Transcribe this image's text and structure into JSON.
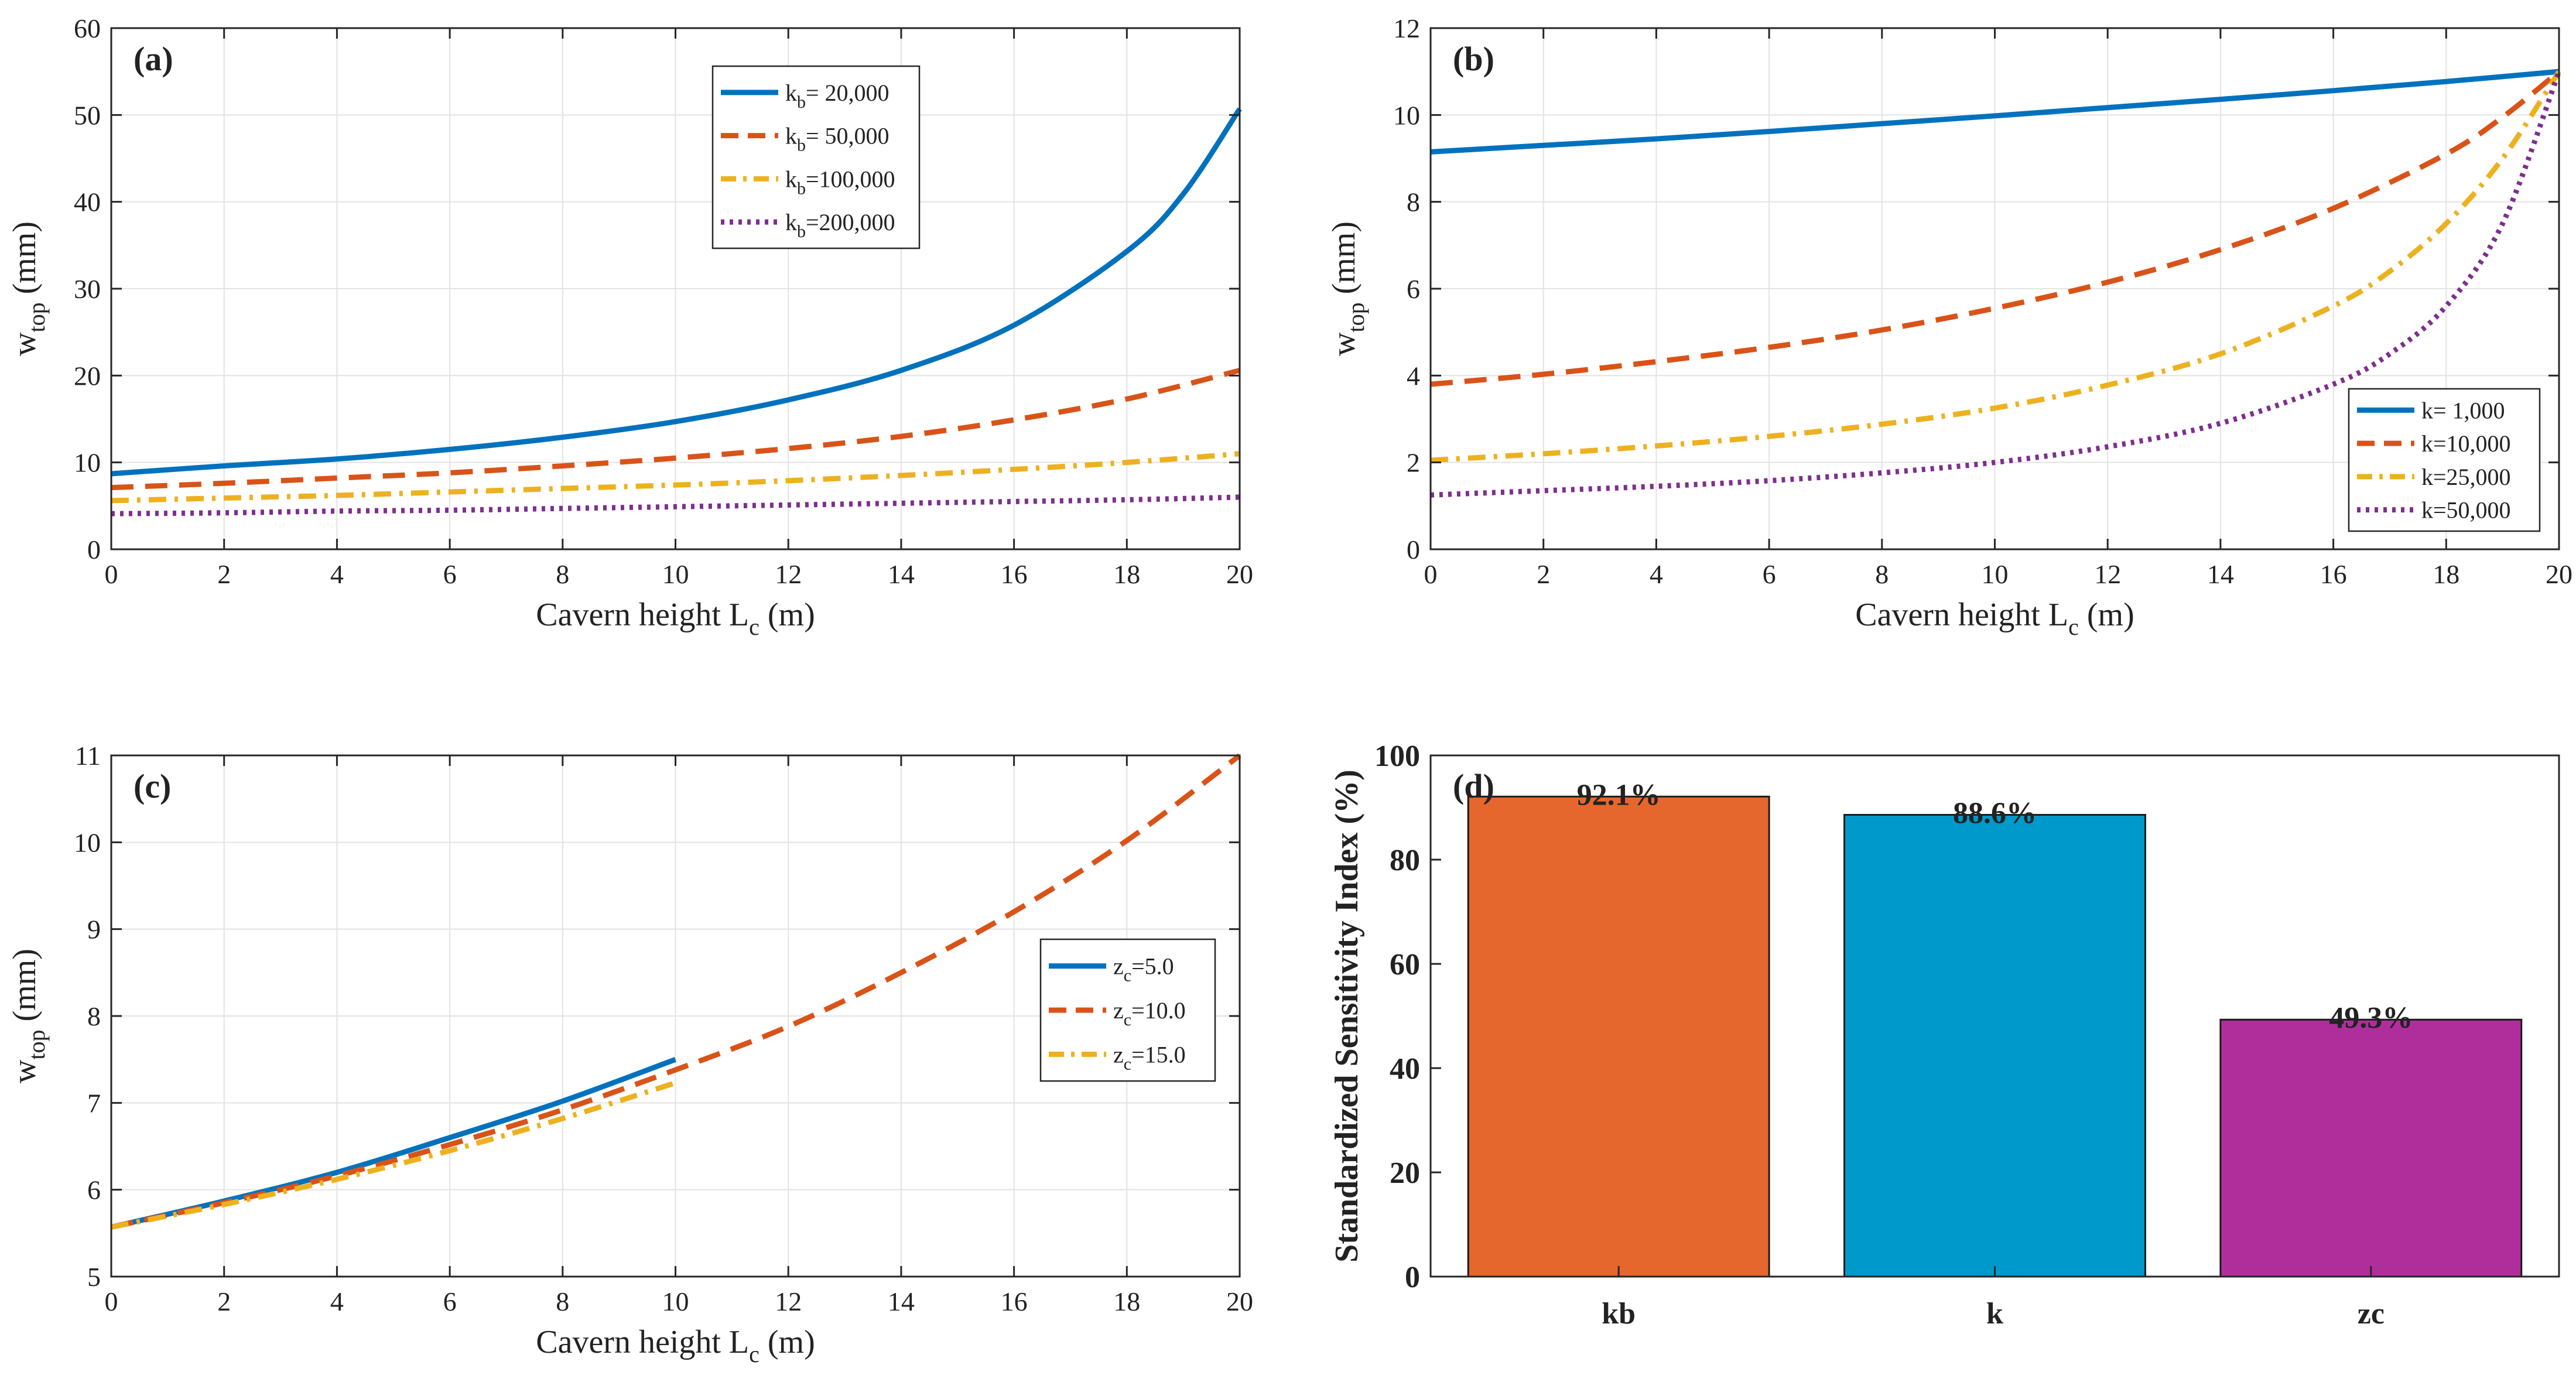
{
  "chart_data": [
    {
      "panel": "(a)",
      "type": "line",
      "xlabel_main": "Cavern height L",
      "xlabel_sub": "c",
      "xlabel_unit": " (m)",
      "ylabel_main": "w",
      "ylabel_sub": "top",
      "ylabel_unit": " (mm)",
      "xlim": [
        0,
        20
      ],
      "ylim": [
        0,
        60
      ],
      "xticks": [
        "0",
        "2",
        "4",
        "6",
        "8",
        "10",
        "12",
        "14",
        "16",
        "18",
        "20"
      ],
      "yticks": [
        "0",
        "10",
        "20",
        "30",
        "40",
        "50",
        "60"
      ],
      "legend_position": "top-right",
      "series": [
        {
          "name_main": "k",
          "name_sub": "b",
          "name_value": "= 20,000",
          "color": "#0072BD",
          "style": "solid",
          "x": [
            0,
            2,
            4,
            6,
            8,
            10,
            12,
            14,
            16,
            18,
            19,
            20
          ],
          "y": [
            8.7,
            9.6,
            10.4,
            11.5,
            12.9,
            14.7,
            17.2,
            20.6,
            25.8,
            34.3,
            40.9,
            50.7
          ]
        },
        {
          "name_main": "k",
          "name_sub": "b",
          "name_value": "= 50,000",
          "color": "#D95319",
          "style": "dash",
          "x": [
            0,
            2,
            4,
            6,
            8,
            10,
            12,
            14,
            16,
            18,
            20
          ],
          "y": [
            7.1,
            7.6,
            8.2,
            8.8,
            9.6,
            10.5,
            11.6,
            13.0,
            14.9,
            17.3,
            20.6
          ]
        },
        {
          "name_main": "k",
          "name_sub": "b",
          "name_value": "=100,000",
          "color": "#EDB120",
          "style": "dashdot",
          "x": [
            0,
            2,
            4,
            6,
            8,
            10,
            12,
            14,
            16,
            18,
            20
          ],
          "y": [
            5.6,
            5.9,
            6.2,
            6.6,
            7.0,
            7.4,
            7.9,
            8.5,
            9.2,
            10.0,
            11.0
          ]
        },
        {
          "name_main": "k",
          "name_sub": "b",
          "name_value": "=200,000",
          "color": "#7E2F8E",
          "style": "dot",
          "x": [
            0,
            2,
            4,
            6,
            8,
            10,
            12,
            14,
            16,
            18,
            20
          ],
          "y": [
            4.1,
            4.2,
            4.4,
            4.5,
            4.7,
            4.9,
            5.1,
            5.3,
            5.5,
            5.7,
            6.0
          ]
        }
      ]
    },
    {
      "panel": "(b)",
      "type": "line",
      "xlabel_main": "Cavern height L",
      "xlabel_sub": "c",
      "xlabel_unit": " (m)",
      "ylabel_main": "w",
      "ylabel_sub": "top",
      "ylabel_unit": " (mm)",
      "xlim": [
        0,
        20
      ],
      "ylim": [
        0,
        12
      ],
      "xticks": [
        "0",
        "2",
        "4",
        "6",
        "8",
        "10",
        "12",
        "14",
        "16",
        "18",
        "20"
      ],
      "yticks": [
        "0",
        "2",
        "4",
        "6",
        "8",
        "10",
        "12"
      ],
      "legend_position": "bottom-right",
      "series": [
        {
          "name_main": "k=  1,000",
          "name_sub": "",
          "name_value": "",
          "color": "#0072BD",
          "style": "solid",
          "x": [
            0,
            2,
            4,
            6,
            8,
            10,
            12,
            14,
            16,
            18,
            20
          ],
          "y": [
            9.15,
            9.3,
            9.45,
            9.62,
            9.8,
            9.98,
            10.17,
            10.36,
            10.56,
            10.77,
            11.0
          ]
        },
        {
          "name_main": "k=10,000",
          "name_sub": "",
          "name_value": "",
          "color": "#D95319",
          "style": "dash",
          "x": [
            0,
            2,
            4,
            6,
            8,
            10,
            12,
            14,
            16,
            18,
            19,
            20
          ],
          "y": [
            3.8,
            4.03,
            4.32,
            4.65,
            5.05,
            5.55,
            6.15,
            6.9,
            7.85,
            9.1,
            9.95,
            11.0
          ]
        },
        {
          "name_main": "k=25,000",
          "name_sub": "",
          "name_value": "",
          "color": "#EDB120",
          "style": "dashdot",
          "x": [
            0,
            2,
            4,
            6,
            8,
            10,
            12,
            14,
            16,
            17,
            18,
            19,
            20
          ],
          "y": [
            2.05,
            2.2,
            2.38,
            2.6,
            2.88,
            3.25,
            3.78,
            4.5,
            5.6,
            6.4,
            7.5,
            9.0,
            11.0
          ]
        },
        {
          "name_main": "k=50,000",
          "name_sub": "",
          "name_value": "",
          "color": "#7E2F8E",
          "style": "dot",
          "x": [
            0,
            2,
            4,
            6,
            8,
            10,
            12,
            14,
            16,
            17,
            18,
            19,
            20
          ],
          "y": [
            1.25,
            1.35,
            1.45,
            1.58,
            1.76,
            2.0,
            2.36,
            2.9,
            3.8,
            4.5,
            5.6,
            7.5,
            11.0
          ]
        }
      ]
    },
    {
      "panel": "(c)",
      "type": "line",
      "xlabel_main": "Cavern height L",
      "xlabel_sub": "c",
      "xlabel_unit": " (m)",
      "ylabel_main": "w",
      "ylabel_sub": "top",
      "ylabel_unit": " (mm)",
      "xlim": [
        0,
        20
      ],
      "ylim": [
        5,
        11
      ],
      "xticks": [
        "0",
        "2",
        "4",
        "6",
        "8",
        "10",
        "12",
        "14",
        "16",
        "18",
        "20"
      ],
      "yticks": [
        "5",
        "6",
        "7",
        "8",
        "9",
        "10",
        "11"
      ],
      "legend_position": "right",
      "series": [
        {
          "name_main": "z",
          "name_sub": "c",
          "name_value": "=5.0",
          "color": "#0072BD",
          "style": "solid",
          "x": [
            0,
            2,
            4,
            6,
            8,
            10
          ],
          "y": [
            5.57,
            5.87,
            6.2,
            6.6,
            7.02,
            7.5
          ]
        },
        {
          "name_main": "z",
          "name_sub": "c",
          "name_value": "=10.0",
          "color": "#D95319",
          "style": "dash",
          "x": [
            0,
            2,
            4,
            6,
            8,
            10,
            12,
            14,
            16,
            18,
            20
          ],
          "y": [
            5.57,
            5.85,
            6.16,
            6.52,
            6.92,
            7.38,
            7.88,
            8.5,
            9.2,
            10.02,
            11.0
          ]
        },
        {
          "name_main": "z",
          "name_sub": "c",
          "name_value": "=15.0",
          "color": "#EDB120",
          "style": "dashdot",
          "x": [
            0,
            2,
            4,
            6,
            8,
            10
          ],
          "y": [
            5.57,
            5.83,
            6.12,
            6.45,
            6.82,
            7.23
          ]
        }
      ]
    },
    {
      "panel": "(d)",
      "type": "bar",
      "ylabel": "Standardized Sensitivity Index (%)",
      "ylim": [
        0,
        100
      ],
      "yticks": [
        "0",
        "20",
        "40",
        "60",
        "80",
        "100"
      ],
      "categories": [
        "kb",
        "k",
        "zc"
      ],
      "values": [
        92.1,
        88.6,
        49.3
      ],
      "labels": [
        "92.1%",
        "88.6%",
        "49.3%"
      ],
      "colors": [
        "#E5672D",
        "#0099CC",
        "#B02E9C"
      ]
    }
  ]
}
